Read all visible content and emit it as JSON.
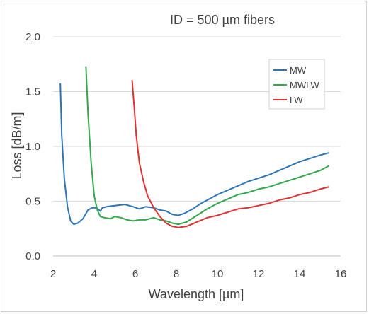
{
  "chart_data": {
    "type": "line",
    "title": "ID = 500 µm fibers",
    "xlabel": "Wavelength [µm]",
    "ylabel": "Loss [dB/m]",
    "xlim": [
      2,
      16
    ],
    "ylim": [
      0.0,
      2.0
    ],
    "x_ticks": [
      "2",
      "4",
      "6",
      "8",
      "10",
      "12",
      "14",
      "16"
    ],
    "y_ticks": [
      "0.0",
      "0.5",
      "1.0",
      "1.5",
      "2.0"
    ],
    "grid": "horizontal",
    "legend_position": "top-right",
    "series": [
      {
        "name": "MW",
        "color": "#2e75b6",
        "x": [
          2.35,
          2.42,
          2.55,
          2.7,
          2.85,
          3.0,
          3.2,
          3.45,
          3.7,
          3.9,
          4.1,
          4.3,
          4.4,
          4.6,
          5.0,
          5.5,
          5.9,
          6.2,
          6.5,
          6.9,
          7.2,
          7.5,
          7.8,
          8.1,
          8.4,
          8.8,
          9.2,
          9.6,
          10.0,
          10.5,
          11.0,
          11.5,
          12.0,
          12.5,
          13.0,
          13.5,
          14.0,
          14.5,
          15.0,
          15.4
        ],
        "y": [
          1.57,
          1.1,
          0.7,
          0.45,
          0.32,
          0.29,
          0.3,
          0.34,
          0.42,
          0.44,
          0.44,
          0.41,
          0.44,
          0.45,
          0.46,
          0.47,
          0.45,
          0.43,
          0.45,
          0.44,
          0.42,
          0.41,
          0.38,
          0.37,
          0.39,
          0.43,
          0.48,
          0.52,
          0.56,
          0.6,
          0.64,
          0.68,
          0.71,
          0.74,
          0.78,
          0.82,
          0.86,
          0.89,
          0.92,
          0.94
        ]
      },
      {
        "name": "MWLW",
        "color": "#33a84f",
        "x": [
          3.6,
          3.7,
          3.85,
          4.0,
          4.15,
          4.3,
          4.5,
          4.8,
          5.0,
          5.3,
          5.6,
          5.9,
          6.2,
          6.5,
          6.9,
          7.2,
          7.5,
          7.8,
          8.1,
          8.5,
          9.0,
          9.5,
          10.0,
          10.5,
          11.0,
          11.5,
          12.0,
          12.5,
          13.0,
          13.5,
          14.0,
          14.5,
          15.0,
          15.4
        ],
        "y": [
          1.72,
          1.3,
          0.85,
          0.55,
          0.42,
          0.36,
          0.35,
          0.34,
          0.36,
          0.35,
          0.33,
          0.32,
          0.33,
          0.33,
          0.35,
          0.33,
          0.32,
          0.3,
          0.29,
          0.31,
          0.37,
          0.43,
          0.48,
          0.52,
          0.56,
          0.58,
          0.61,
          0.63,
          0.66,
          0.69,
          0.72,
          0.75,
          0.78,
          0.82
        ]
      },
      {
        "name": "LW",
        "color": "#e03232",
        "x": [
          5.85,
          5.95,
          6.05,
          6.2,
          6.4,
          6.6,
          6.9,
          7.2,
          7.5,
          7.8,
          8.1,
          8.5,
          9.0,
          9.5,
          10.0,
          10.5,
          11.0,
          11.5,
          12.0,
          12.5,
          13.0,
          13.5,
          14.0,
          14.5,
          15.0,
          15.4
        ],
        "y": [
          1.6,
          1.35,
          1.1,
          0.85,
          0.68,
          0.55,
          0.44,
          0.36,
          0.3,
          0.27,
          0.26,
          0.27,
          0.31,
          0.35,
          0.37,
          0.4,
          0.43,
          0.44,
          0.46,
          0.48,
          0.51,
          0.53,
          0.56,
          0.58,
          0.61,
          0.63
        ]
      }
    ]
  }
}
